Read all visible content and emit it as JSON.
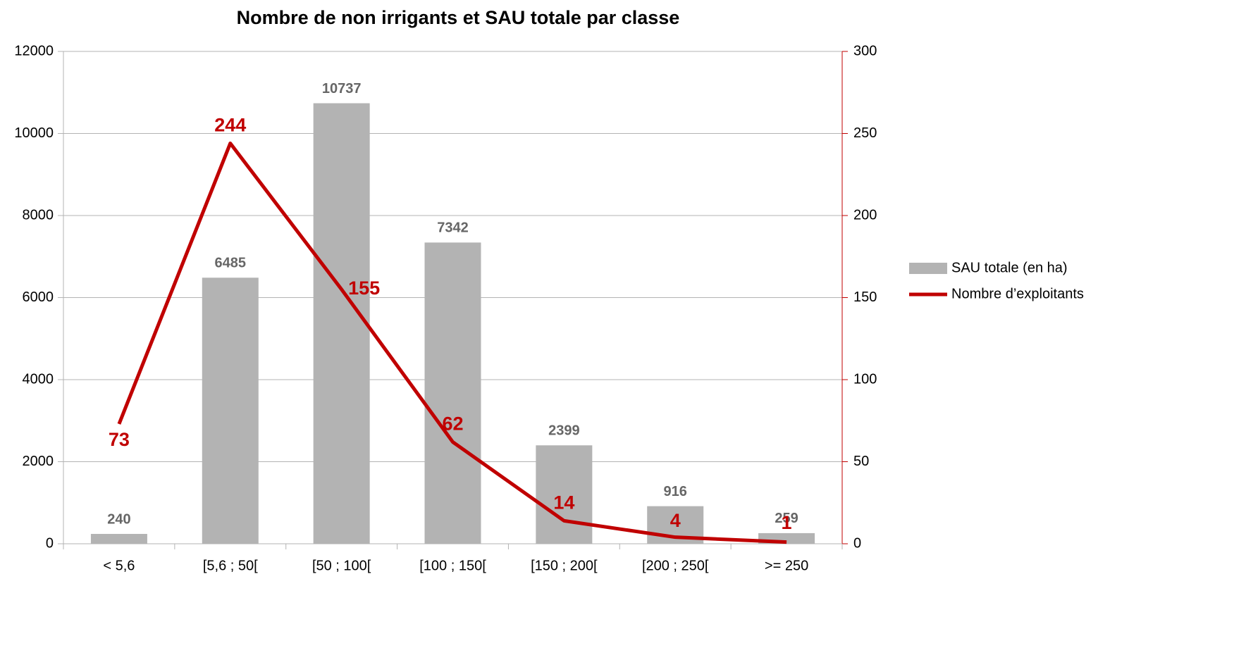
{
  "chart_data": {
    "type": "bar",
    "title": "Nombre de non irrigants et SAU totale par classe",
    "categories": [
      "< 5,6",
      "[5,6 ; 50[",
      "[50 ; 100[",
      "[100 ; 150[",
      "[150 ; 200[",
      "[200 ; 250[",
      ">= 250"
    ],
    "series": [
      {
        "name": "SAU totale (en ha)",
        "type": "bar",
        "color": "#b3b3b3",
        "label_color": "#666666",
        "values": [
          240,
          6485,
          10737,
          7342,
          2399,
          916,
          259
        ]
      },
      {
        "name": "Nombre d’exploitants",
        "type": "line",
        "axis": "y2",
        "color": "#c00000",
        "label_color": "#c00000",
        "values": [
          73,
          244,
          155,
          62,
          14,
          4,
          1
        ]
      }
    ],
    "ylim": [
      0,
      12000
    ],
    "yticks": [
      0,
      2000,
      4000,
      6000,
      8000,
      10000,
      12000
    ],
    "y2lim": [
      0,
      300
    ],
    "y2ticks": [
      0,
      50,
      100,
      150,
      200,
      250,
      300
    ],
    "y2_axis_color": "#c00000",
    "grid": true,
    "legend": "right"
  }
}
